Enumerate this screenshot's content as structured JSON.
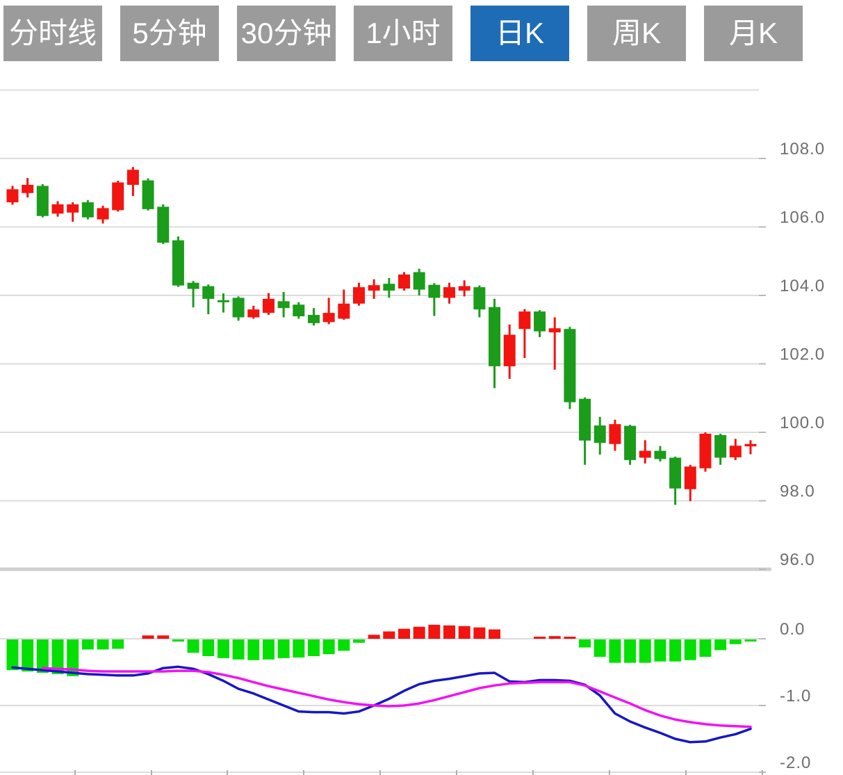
{
  "tab_bar": {
    "text_color": "#ffffff",
    "inactive_bg": "#9b9b9b",
    "active_bg": "#1e6cb5",
    "items": [
      {
        "label": "分时线",
        "active": false
      },
      {
        "label": "5分钟",
        "active": false
      },
      {
        "label": "30分钟",
        "active": false
      },
      {
        "label": "1小时",
        "active": false
      },
      {
        "label": "日K",
        "active": true
      },
      {
        "label": "周K",
        "active": false
      },
      {
        "label": "月K",
        "active": false
      }
    ]
  },
  "price_axis": {
    "tick_labels": [
      "108.0",
      "106.0",
      "104.0",
      "102.0",
      "100.0",
      "98.0",
      "96.0"
    ],
    "tick_values": [
      108,
      106,
      104,
      102,
      100,
      98,
      96
    ],
    "top_gridline_value": 110,
    "panel_divider_value": 96,
    "label_color": "#6e6e6e"
  },
  "macd_axis": {
    "tick_labels": [
      "0.0",
      "-1.0",
      "-2.0"
    ],
    "tick_values": [
      0,
      -1,
      -2
    ],
    "label_color": "#6e6e6e"
  },
  "chart_data": {
    "type": "candlestick_with_macd",
    "selected_period": "日K",
    "title": "",
    "legend_position": "none",
    "grid": true,
    "price_range": [
      96,
      110
    ],
    "macd_range": [
      -2,
      0
    ],
    "up_color": "#f21410",
    "down_color": "#1b9c1b",
    "grid_color": "#dcdcdc",
    "divider_color": "#cfcfcf",
    "candles_ohlc": [
      [
        106.72,
        107.2,
        106.65,
        107.1
      ],
      [
        106.99,
        107.43,
        106.86,
        107.23
      ],
      [
        107.2,
        107.25,
        106.28,
        106.32
      ],
      [
        106.39,
        106.75,
        106.3,
        106.66
      ],
      [
        106.42,
        106.72,
        106.15,
        106.66
      ],
      [
        106.72,
        106.78,
        106.22,
        106.28
      ],
      [
        106.22,
        106.62,
        106.1,
        106.55
      ],
      [
        106.49,
        107.35,
        106.45,
        107.3
      ],
      [
        107.23,
        107.75,
        106.9,
        107.67
      ],
      [
        107.36,
        107.42,
        106.48,
        106.52
      ],
      [
        106.59,
        106.66,
        105.5,
        105.54
      ],
      [
        105.61,
        105.72,
        104.25,
        104.29
      ],
      [
        104.37,
        104.42,
        103.65,
        104.19
      ],
      [
        104.27,
        104.32,
        103.45,
        103.9
      ],
      [
        103.86,
        104.06,
        103.5,
        103.8
      ],
      [
        103.93,
        103.97,
        103.26,
        103.36
      ],
      [
        103.36,
        103.7,
        103.32,
        103.59
      ],
      [
        103.49,
        104.07,
        103.43,
        103.9
      ],
      [
        103.83,
        104.1,
        103.36,
        103.63
      ],
      [
        103.73,
        103.8,
        103.32,
        103.39
      ],
      [
        103.43,
        103.63,
        103.12,
        103.19
      ],
      [
        103.22,
        103.93,
        103.16,
        103.49
      ],
      [
        103.32,
        104.17,
        103.29,
        103.76
      ],
      [
        103.76,
        104.37,
        103.7,
        104.24
      ],
      [
        104.14,
        104.47,
        103.9,
        104.3
      ],
      [
        104.34,
        104.51,
        103.93,
        104.14
      ],
      [
        104.2,
        104.68,
        104.14,
        104.61
      ],
      [
        104.68,
        104.78,
        104.0,
        104.17
      ],
      [
        104.31,
        104.36,
        103.4,
        103.93
      ],
      [
        103.93,
        104.37,
        103.76,
        104.24
      ],
      [
        104.14,
        104.44,
        103.97,
        104.27
      ],
      [
        104.24,
        104.29,
        103.36,
        103.59
      ],
      [
        103.66,
        103.9,
        101.29,
        101.93
      ],
      [
        101.93,
        103.15,
        101.56,
        102.85
      ],
      [
        103.02,
        103.6,
        102.17,
        103.53
      ],
      [
        103.53,
        103.57,
        102.78,
        102.95
      ],
      [
        102.92,
        103.36,
        101.83,
        103.04
      ],
      [
        103.02,
        103.08,
        100.68,
        100.88
      ],
      [
        100.98,
        101.02,
        99.05,
        99.76
      ],
      [
        100.2,
        100.45,
        99.35,
        99.69
      ],
      [
        99.66,
        100.37,
        99.46,
        100.24
      ],
      [
        100.19,
        100.22,
        99.05,
        99.19
      ],
      [
        99.26,
        99.77,
        99.09,
        99.46
      ],
      [
        99.46,
        99.6,
        99.15,
        99.22
      ],
      [
        99.26,
        99.29,
        97.88,
        98.36
      ],
      [
        98.34,
        99.05,
        97.99,
        99.0
      ],
      [
        98.95,
        100.0,
        98.85,
        99.96
      ],
      [
        99.92,
        99.96,
        99.05,
        99.26
      ],
      [
        99.27,
        99.81,
        99.19,
        99.61
      ],
      [
        99.59,
        99.77,
        99.36,
        99.66
      ]
    ],
    "macd": {
      "hist_up_color": "#f21410",
      "hist_down_color": "#04e004",
      "dif_color": "#1717c4",
      "dea_color": "#f211f2",
      "hist": [
        -0.46,
        -0.48,
        -0.5,
        -0.52,
        -0.55,
        -0.15,
        -0.15,
        -0.14,
        0,
        0.05,
        0.05,
        -0.03,
        -0.2,
        -0.25,
        -0.28,
        -0.3,
        -0.31,
        -0.3,
        -0.28,
        -0.27,
        -0.25,
        -0.22,
        -0.17,
        -0.05,
        0.06,
        0.11,
        0.15,
        0.18,
        0.21,
        0.2,
        0.19,
        0.17,
        0.14,
        0,
        0,
        0.03,
        0.04,
        0.03,
        -0.12,
        -0.26,
        -0.35,
        -0.35,
        -0.35,
        -0.33,
        -0.33,
        -0.31,
        -0.26,
        -0.16,
        -0.07,
        -0.02
      ],
      "dif": [
        -0.43,
        -0.45,
        -0.47,
        -0.49,
        -0.51,
        -0.53,
        -0.54,
        -0.55,
        -0.55,
        -0.52,
        -0.44,
        -0.42,
        -0.45,
        -0.53,
        -0.63,
        -0.75,
        -0.82,
        -0.91,
        -1.0,
        -1.09,
        -1.1,
        -1.1,
        -1.12,
        -1.09,
        -1.0,
        -0.9,
        -0.78,
        -0.68,
        -0.63,
        -0.6,
        -0.56,
        -0.52,
        -0.51,
        -0.64,
        -0.65,
        -0.62,
        -0.62,
        -0.63,
        -0.69,
        -0.85,
        -1.12,
        -1.24,
        -1.33,
        -1.41,
        -1.5,
        -1.55,
        -1.54,
        -1.48,
        -1.43,
        -1.35
      ],
      "dea": [
        null,
        null,
        -0.44,
        -0.45,
        -0.46,
        -0.48,
        -0.49,
        -0.49,
        -0.49,
        -0.49,
        -0.49,
        -0.48,
        -0.48,
        -0.5,
        -0.54,
        -0.59,
        -0.65,
        -0.71,
        -0.76,
        -0.81,
        -0.86,
        -0.91,
        -0.95,
        -0.98,
        -1.0,
        -1.01,
        -1.0,
        -0.97,
        -0.92,
        -0.86,
        -0.8,
        -0.74,
        -0.7,
        -0.67,
        -0.66,
        -0.65,
        -0.65,
        -0.65,
        -0.7,
        -0.79,
        -0.88,
        -0.97,
        -1.07,
        -1.15,
        -1.21,
        -1.25,
        -1.28,
        -1.3,
        -1.31,
        -1.32
      ]
    }
  }
}
